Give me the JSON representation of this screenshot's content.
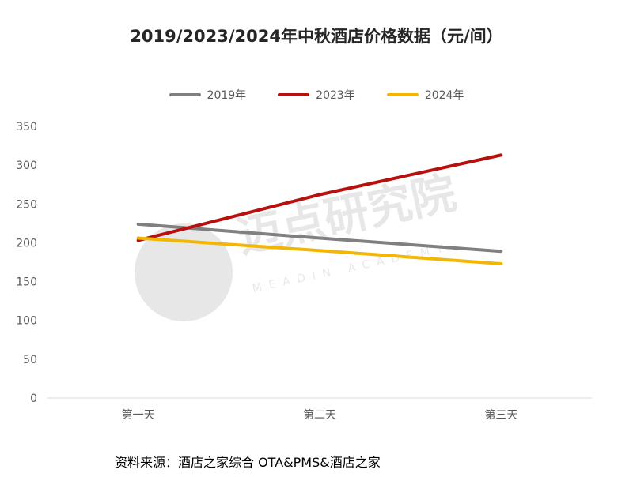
{
  "colors": {
    "s2019": "#808080",
    "s2023": "#b80f0f",
    "s2024": "#f2b705",
    "axis": "#d9d9d9",
    "tick": "#595959"
  },
  "source_note": "资料来源：酒店之家综合 OTA&PMS&酒店之家",
  "watermark": {
    "cn": "迈点研究院",
    "en": "MEADIN ACADEMY"
  },
  "chart_data": {
    "type": "line",
    "title": "2019/2023/2024年中秋酒店价格数据（元/间）",
    "categories": [
      "第一天",
      "第二天",
      "第三天"
    ],
    "ylim": [
      0,
      350
    ],
    "yticks": [
      0,
      50,
      100,
      150,
      200,
      250,
      300,
      350
    ],
    "grid": false,
    "legend": "top",
    "series": [
      {
        "name": "2019年",
        "values": [
          224,
          206,
          189
        ],
        "color": "#808080"
      },
      {
        "name": "2023年",
        "values": [
          203,
          262,
          313
        ],
        "color": "#b80f0f"
      },
      {
        "name": "2024年",
        "values": [
          206,
          190,
          173
        ],
        "color": "#f2b705"
      }
    ]
  }
}
